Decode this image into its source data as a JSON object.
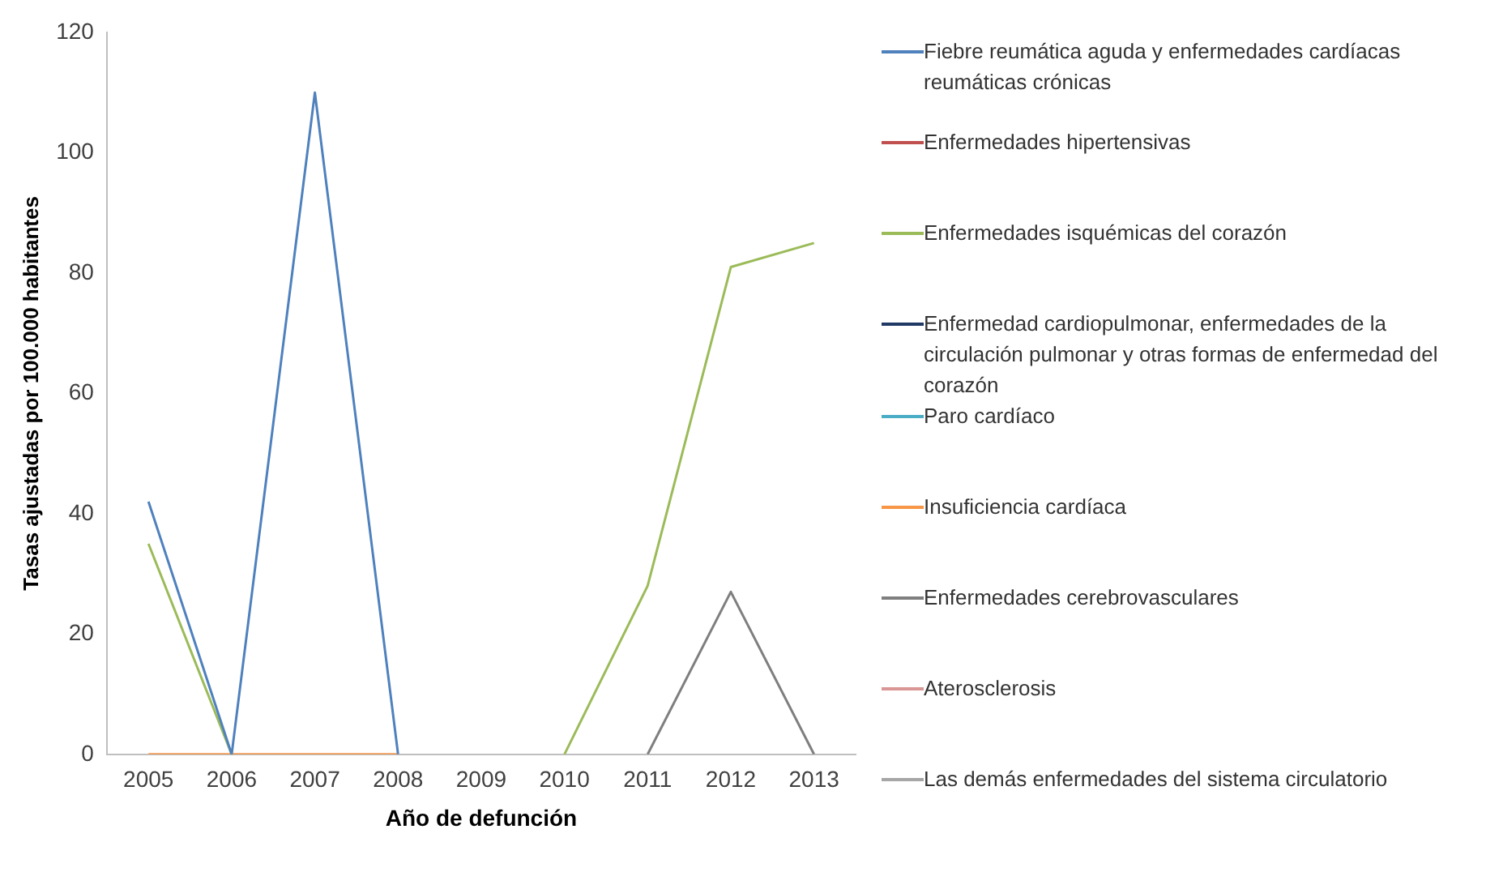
{
  "chart_data": {
    "type": "line",
    "xlabel": "Año de defunción",
    "ylabel": "Tasas ajustadas por 100.000 habitantes",
    "categories": [
      "2005",
      "2006",
      "2007",
      "2008",
      "2009",
      "2010",
      "2011",
      "2012",
      "2013"
    ],
    "ylim": [
      0,
      120
    ],
    "yticks": [
      0,
      20,
      40,
      60,
      80,
      100,
      120
    ],
    "grid": false,
    "legend": "right",
    "marker": "none",
    "line_style": "solid",
    "series": [
      {
        "name": "Fiebre reumática aguda y enfermedades cardíacas reumáticas crónicas",
        "color": "#4f81bd",
        "values": [
          42,
          0,
          110,
          0,
          null,
          null,
          null,
          null,
          null
        ]
      },
      {
        "name": "Enfermedades hipertensivas",
        "color": "#c0504d",
        "values": [
          null,
          null,
          null,
          null,
          null,
          null,
          null,
          null,
          null
        ]
      },
      {
        "name": "Enfermedades isquémicas del corazón",
        "color": "#9bbb59",
        "values": [
          35,
          0,
          null,
          null,
          null,
          0,
          28,
          81,
          85
        ]
      },
      {
        "name": "Enfermedad cardiopulmonar, enfermedades de la circulación pulmonar y otras formas de enfermedad del corazón",
        "color": "#1f3864",
        "values": [
          null,
          null,
          null,
          null,
          null,
          null,
          null,
          null,
          null
        ]
      },
      {
        "name": "Paro cardíaco",
        "color": "#4bacc6",
        "values": [
          null,
          null,
          null,
          null,
          null,
          null,
          null,
          null,
          null
        ]
      },
      {
        "name": "Insuficiencia cardíaca",
        "color": "#f79646",
        "values": [
          0,
          0,
          0,
          0,
          null,
          null,
          null,
          null,
          null
        ]
      },
      {
        "name": "Enfermedades cerebrovasculares",
        "color": "#7f7f7f",
        "values": [
          null,
          null,
          null,
          null,
          null,
          null,
          0,
          27,
          0
        ]
      },
      {
        "name": "Aterosclerosis",
        "color": "#d99694",
        "values": [
          null,
          null,
          null,
          null,
          null,
          null,
          null,
          null,
          null
        ]
      },
      {
        "name": "Las demás enfermedades del sistema circulatorio",
        "color": "#a6a6a6",
        "values": [
          null,
          null,
          null,
          null,
          null,
          null,
          null,
          null,
          null
        ]
      }
    ]
  }
}
